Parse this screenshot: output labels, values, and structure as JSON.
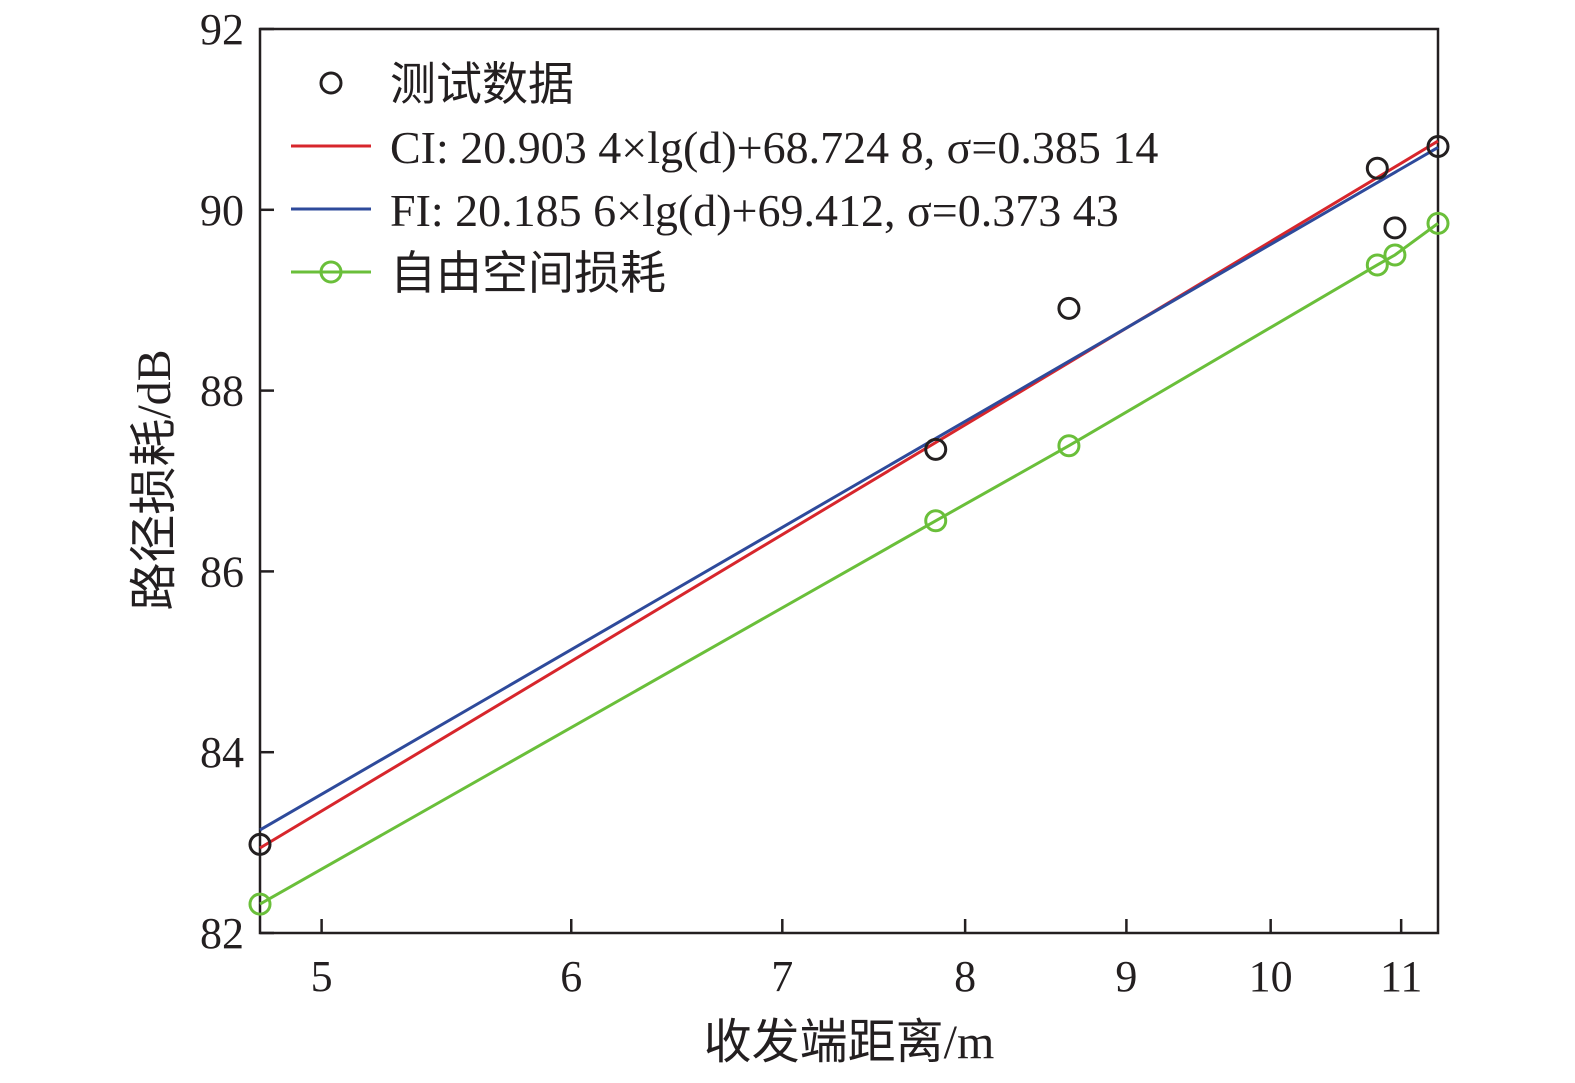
{
  "chart_data": {
    "type": "scatter",
    "xlabel": "收发端距离/m",
    "ylabel": "路径损耗/dB",
    "xlim": [
      4.78,
      11.3
    ],
    "ylim": [
      82,
      92
    ],
    "x_scale": "log",
    "x_ticks": [
      "5",
      "6",
      "7",
      "8",
      "9",
      "10",
      "11"
    ],
    "y_ticks": [
      "82",
      "84",
      "86",
      "88",
      "90",
      "92"
    ],
    "grid": false,
    "legend_position": "top-left",
    "series": [
      {
        "name": "测试数据",
        "kind": "points",
        "color": "#231f20",
        "x": [
          4.78,
          7.83,
          8.63,
          10.81,
          10.95,
          11.3
        ],
        "y": [
          82.98,
          87.35,
          88.91,
          90.46,
          89.8,
          90.7
        ]
      },
      {
        "name": "CI: 20.903 4×lg(d)+68.724 8,  σ=0.385 14",
        "kind": "line",
        "color": "#d7262c",
        "x": [
          4.78,
          11.3
        ],
        "y": [
          82.94,
          90.76
        ]
      },
      {
        "name": "FI: 20.185 6×lg(d)+69.412,  σ=0.373 43",
        "kind": "line",
        "color": "#2e4a9b",
        "x": [
          4.78,
          11.3
        ],
        "y": [
          83.14,
          90.69
        ]
      },
      {
        "name": "自由空间损耗",
        "kind": "line-markers",
        "color": "#6abf3a",
        "x": [
          4.78,
          7.83,
          8.63,
          10.81,
          10.95,
          11.3
        ],
        "y": [
          82.32,
          86.56,
          87.39,
          89.39,
          89.5,
          89.85
        ]
      }
    ]
  }
}
